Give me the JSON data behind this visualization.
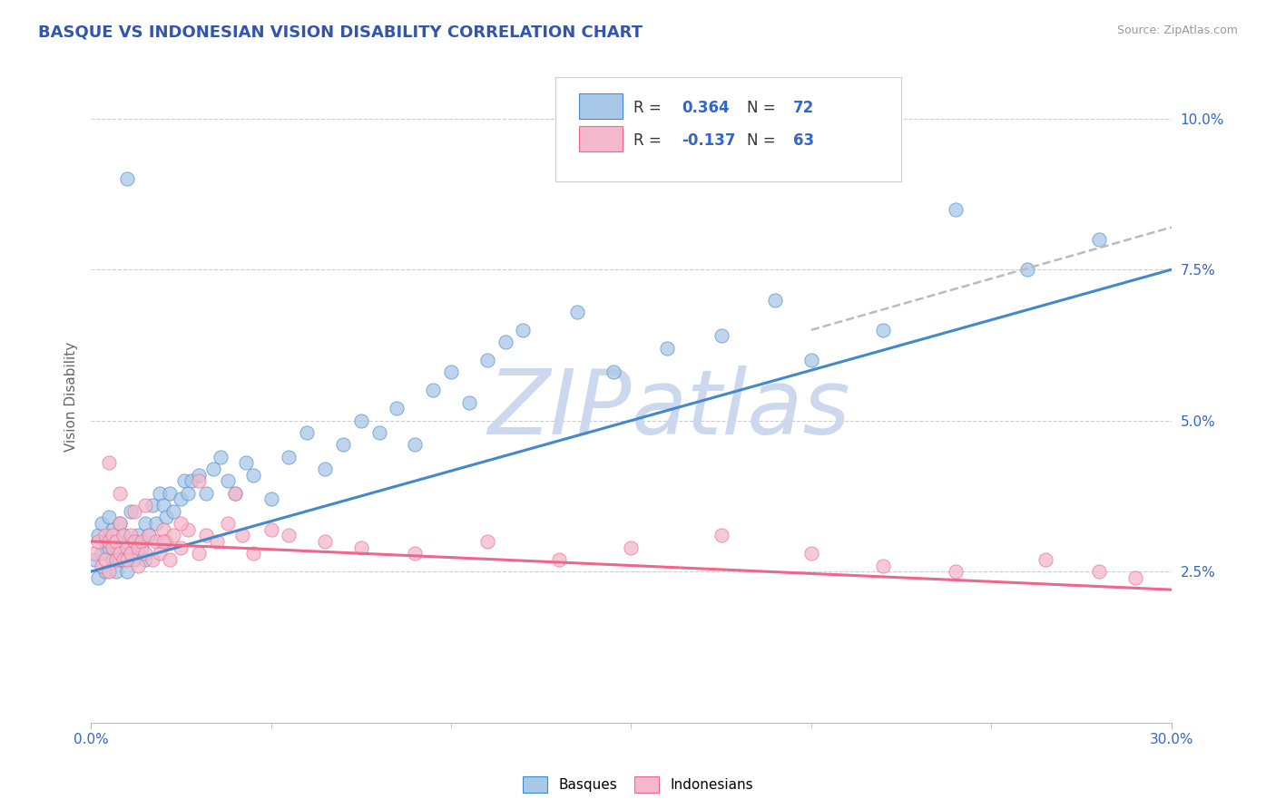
{
  "title": "BASQUE VS INDONESIAN VISION DISABILITY CORRELATION CHART",
  "source": "Source: ZipAtlas.com",
  "ylabel": "Vision Disability",
  "y_ticks_labels": [
    "2.5%",
    "5.0%",
    "7.5%",
    "10.0%"
  ],
  "y_tick_vals": [
    0.025,
    0.05,
    0.075,
    0.1
  ],
  "x_range": [
    0.0,
    0.3
  ],
  "y_range": [
    0.0,
    0.108
  ],
  "blue_R": 0.364,
  "blue_N": 72,
  "pink_R": -0.137,
  "pink_N": 63,
  "blue_color": "#a8c8e8",
  "pink_color": "#f4b8cc",
  "blue_line_color": "#4488cc",
  "pink_line_color": "#ee6688",
  "trend_dash_color": "#bbbbbb",
  "watermark_color": "#ccd8ee",
  "background_color": "#ffffff",
  "grid_color": "#cccccc",
  "title_color": "#3355aa",
  "text_dark": "#333333",
  "legend_N_color": "#3366cc",
  "blue_scatter_x": [
    0.001,
    0.002,
    0.002,
    0.003,
    0.003,
    0.004,
    0.004,
    0.005,
    0.005,
    0.006,
    0.006,
    0.007,
    0.007,
    0.008,
    0.008,
    0.009,
    0.01,
    0.01,
    0.011,
    0.011,
    0.012,
    0.012,
    0.013,
    0.014,
    0.015,
    0.015,
    0.016,
    0.017,
    0.018,
    0.019,
    0.02,
    0.021,
    0.022,
    0.023,
    0.025,
    0.026,
    0.027,
    0.028,
    0.03,
    0.032,
    0.034,
    0.036,
    0.038,
    0.04,
    0.043,
    0.045,
    0.05,
    0.055,
    0.06,
    0.065,
    0.07,
    0.075,
    0.08,
    0.085,
    0.09,
    0.095,
    0.1,
    0.105,
    0.11,
    0.115,
    0.12,
    0.135,
    0.145,
    0.16,
    0.175,
    0.19,
    0.2,
    0.22,
    0.24,
    0.26,
    0.28,
    0.01
  ],
  "blue_scatter_y": [
    0.027,
    0.024,
    0.031,
    0.028,
    0.033,
    0.025,
    0.03,
    0.029,
    0.034,
    0.027,
    0.032,
    0.025,
    0.029,
    0.033,
    0.027,
    0.031,
    0.025,
    0.03,
    0.028,
    0.035,
    0.03,
    0.027,
    0.031,
    0.029,
    0.033,
    0.027,
    0.031,
    0.036,
    0.033,
    0.038,
    0.036,
    0.034,
    0.038,
    0.035,
    0.037,
    0.04,
    0.038,
    0.04,
    0.041,
    0.038,
    0.042,
    0.044,
    0.04,
    0.038,
    0.043,
    0.041,
    0.037,
    0.044,
    0.048,
    0.042,
    0.046,
    0.05,
    0.048,
    0.052,
    0.046,
    0.055,
    0.058,
    0.053,
    0.06,
    0.063,
    0.065,
    0.068,
    0.058,
    0.062,
    0.064,
    0.07,
    0.06,
    0.065,
    0.085,
    0.075,
    0.08,
    0.09
  ],
  "pink_scatter_x": [
    0.001,
    0.002,
    0.003,
    0.004,
    0.004,
    0.005,
    0.005,
    0.006,
    0.006,
    0.007,
    0.007,
    0.008,
    0.008,
    0.009,
    0.009,
    0.01,
    0.01,
    0.011,
    0.011,
    0.012,
    0.013,
    0.013,
    0.014,
    0.015,
    0.016,
    0.017,
    0.018,
    0.019,
    0.02,
    0.021,
    0.022,
    0.023,
    0.025,
    0.027,
    0.03,
    0.032,
    0.035,
    0.038,
    0.042,
    0.045,
    0.05,
    0.055,
    0.065,
    0.075,
    0.09,
    0.11,
    0.13,
    0.15,
    0.175,
    0.2,
    0.22,
    0.24,
    0.265,
    0.28,
    0.29,
    0.005,
    0.008,
    0.012,
    0.015,
    0.02,
    0.025,
    0.03,
    0.04
  ],
  "pink_scatter_y": [
    0.028,
    0.03,
    0.026,
    0.031,
    0.027,
    0.03,
    0.025,
    0.029,
    0.031,
    0.027,
    0.03,
    0.028,
    0.033,
    0.027,
    0.031,
    0.029,
    0.027,
    0.031,
    0.028,
    0.03,
    0.029,
    0.026,
    0.03,
    0.028,
    0.031,
    0.027,
    0.03,
    0.028,
    0.032,
    0.03,
    0.027,
    0.031,
    0.029,
    0.032,
    0.028,
    0.031,
    0.03,
    0.033,
    0.031,
    0.028,
    0.032,
    0.031,
    0.03,
    0.029,
    0.028,
    0.03,
    0.027,
    0.029,
    0.031,
    0.028,
    0.026,
    0.025,
    0.027,
    0.025,
    0.024,
    0.043,
    0.038,
    0.035,
    0.036,
    0.03,
    0.033,
    0.04,
    0.038
  ],
  "blue_line_x0": 0.0,
  "blue_line_y0": 0.025,
  "blue_line_x1": 0.3,
  "blue_line_y1": 0.075,
  "pink_line_x0": 0.0,
  "pink_line_y0": 0.03,
  "pink_line_x1": 0.3,
  "pink_line_y1": 0.022,
  "dash_line_x0": 0.2,
  "dash_line_y0": 0.065,
  "dash_line_x1": 0.3,
  "dash_line_y1": 0.082
}
